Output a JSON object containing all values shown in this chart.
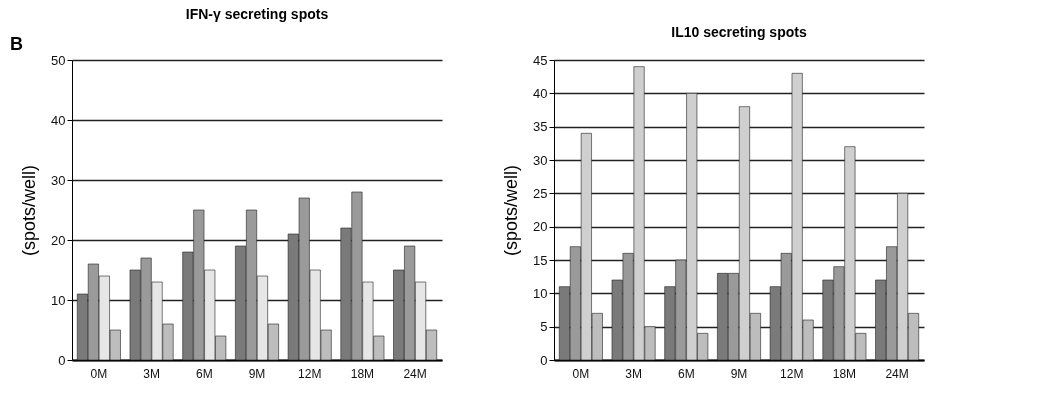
{
  "chart_data": [
    {
      "type": "bar",
      "title": "IFN-γ secreting spots",
      "ylabel": "(spots/well)",
      "annotations": [
        "B"
      ],
      "categories": [
        "0M",
        "3M",
        "6M",
        "9M",
        "12M",
        "18M",
        "24M"
      ],
      "series": [
        {
          "color": "#7a7a7a",
          "values": [
            11,
            15,
            18,
            19,
            21,
            22,
            15
          ]
        },
        {
          "color": "#9a9a9a",
          "values": [
            16,
            17,
            25,
            25,
            27,
            28,
            19
          ]
        },
        {
          "color": "#e6e6e6",
          "values": [
            14,
            13,
            15,
            14,
            15,
            13,
            13
          ]
        },
        {
          "color": "#bdbdbd",
          "values": [
            5,
            6,
            4,
            6,
            5,
            4,
            5
          ]
        }
      ],
      "ylim": [
        0,
        50
      ],
      "yticks": [
        0,
        10,
        20,
        30,
        40,
        50
      ],
      "grid": "y",
      "legend": false
    },
    {
      "type": "bar",
      "title": "IL10 secreting spots",
      "ylabel": "(spots/well)",
      "categories": [
        "0M",
        "3M",
        "6M",
        "9M",
        "12M",
        "18M",
        "24M"
      ],
      "series": [
        {
          "color": "#7a7a7a",
          "values": [
            11,
            12,
            11,
            13,
            11,
            12,
            12
          ]
        },
        {
          "color": "#9a9a9a",
          "values": [
            17,
            16,
            15,
            13,
            16,
            14,
            17
          ]
        },
        {
          "color": "#cfcfcf",
          "values": [
            34,
            44,
            40,
            38,
            43,
            32,
            25
          ]
        },
        {
          "color": "#bdbdbd",
          "values": [
            7,
            5,
            4,
            7,
            6,
            4,
            7
          ]
        }
      ],
      "ylim": [
        0,
        45
      ],
      "yticks": [
        0,
        5,
        10,
        15,
        20,
        25,
        30,
        35,
        40,
        45
      ],
      "grid": "y",
      "legend": false
    }
  ]
}
